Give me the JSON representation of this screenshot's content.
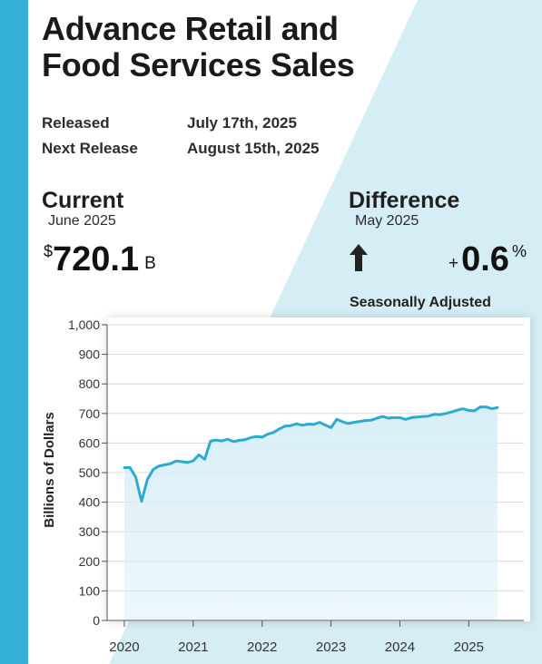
{
  "header": {
    "title": "Advance Retail and Food Services Sales",
    "released_label": "Released",
    "released_value": "July 17th, 2025",
    "next_label": "Next Release",
    "next_value": "August 15th, 2025"
  },
  "current": {
    "label": "Current",
    "period": "June 2025",
    "currency": "$",
    "value": "720.1",
    "unit": "B"
  },
  "difference": {
    "label": "Difference",
    "period": "May 2025",
    "direction_icon": "arrow-up-icon",
    "sign": "+",
    "value": "0.6",
    "unit": "%",
    "note": "Seasonally Adjusted"
  },
  "colors": {
    "accent": "#33b1d9",
    "line": "#2ea9d1",
    "area": "#d8eef6",
    "background_panel": "#d5edf5"
  },
  "chart_data": {
    "type": "area",
    "xlabel": "",
    "ylabel": "Billions of Dollars",
    "ylim": [
      0,
      1000
    ],
    "yticks": [
      0,
      100,
      200,
      300,
      400,
      500,
      600,
      700,
      800,
      900,
      1000
    ],
    "ytick_labels": [
      "0",
      "100",
      "200",
      "300",
      "400",
      "500",
      "600",
      "700",
      "800",
      "900",
      "1,000"
    ],
    "xticks": [
      2020,
      2021,
      2022,
      2023,
      2024,
      2025
    ],
    "xtick_labels": [
      "2020",
      "2021",
      "2022",
      "2023",
      "2024",
      "2025"
    ],
    "grid": true,
    "series": [
      {
        "x_start": "2020-01",
        "frequency": "monthly",
        "values": [
          517,
          517,
          484,
          403,
          476,
          510,
          522,
          526,
          530,
          539,
          537,
          534,
          540,
          560,
          545,
          606,
          610,
          607,
          613,
          605,
          609,
          611,
          618,
          622,
          620,
          630,
          636,
          648,
          657,
          659,
          665,
          660,
          664,
          663,
          670,
          661,
          652,
          680,
          672,
          666,
          670,
          673,
          676,
          677,
          684,
          690,
          684,
          686,
          686,
          680,
          686,
          688,
          690,
          691,
          697,
          696,
          700,
          705,
          711,
          716,
          710,
          709,
          722,
          722,
          716,
          720
        ]
      }
    ]
  }
}
